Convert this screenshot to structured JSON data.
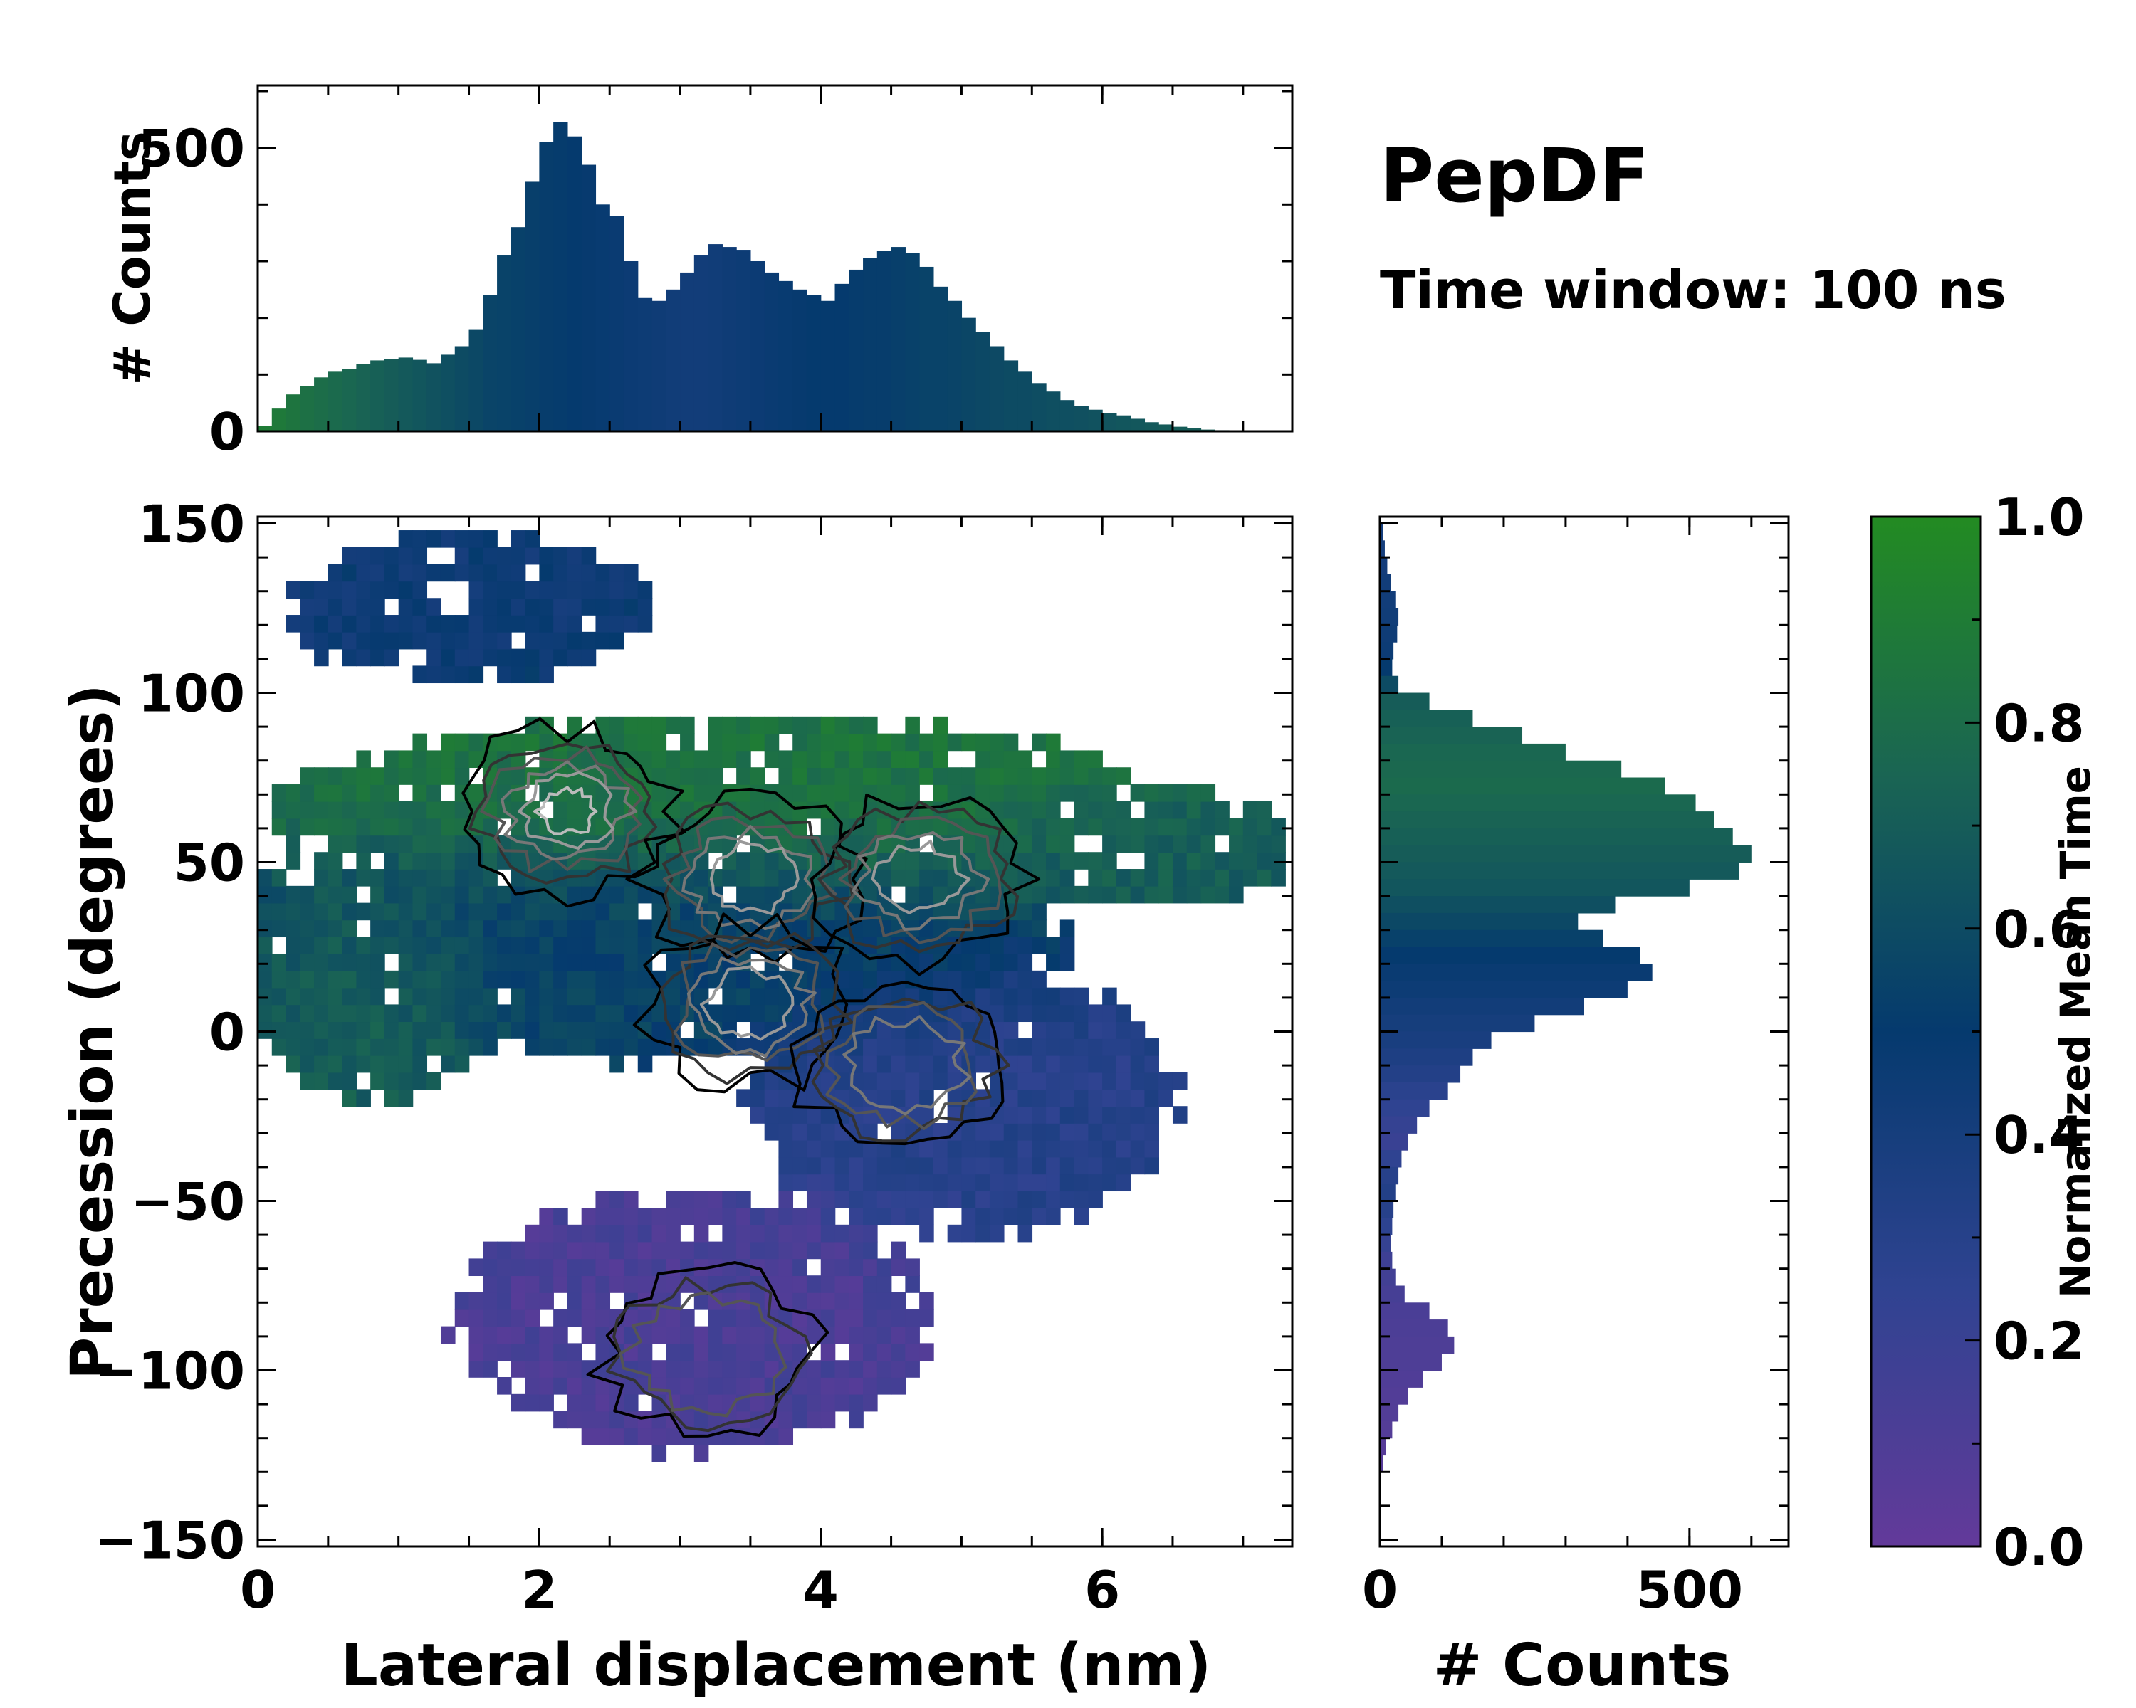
{
  "annotations": {
    "title": "PepDF",
    "subtitle": "Time window: 100 ns"
  },
  "colormap": {
    "stops": [
      {
        "value": 0.0,
        "color": "#633a9a"
      },
      {
        "value": 0.25,
        "color": "#2f4391"
      },
      {
        "value": 0.5,
        "color": "#053a6e"
      },
      {
        "value": 0.75,
        "color": "#1a6553"
      },
      {
        "value": 1.0,
        "color": "#238b22"
      }
    ],
    "contour_colors": [
      "#000000",
      "#333333",
      "#555555",
      "#777777",
      "#999999",
      "#bbbbbb"
    ]
  },
  "chart_data": [
    {
      "id": "top_histogram",
      "type": "bar",
      "title": "",
      "xlabel": "",
      "ylabel": "# Counts",
      "xlim": [
        0,
        7.35
      ],
      "ylim": [
        0,
        610
      ],
      "yticks": [
        0,
        500
      ],
      "ytick_labels": [
        "0",
        "500"
      ],
      "x": [
        0.05,
        0.15,
        0.25,
        0.35,
        0.45,
        0.55,
        0.65,
        0.75,
        0.85,
        0.95,
        1.05,
        1.15,
        1.25,
        1.35,
        1.45,
        1.55,
        1.65,
        1.75,
        1.85,
        1.95,
        2.05,
        2.15,
        2.25,
        2.35,
        2.45,
        2.55,
        2.65,
        2.75,
        2.85,
        2.95,
        3.05,
        3.15,
        3.25,
        3.35,
        3.45,
        3.55,
        3.65,
        3.75,
        3.85,
        3.95,
        4.05,
        4.15,
        4.25,
        4.35,
        4.45,
        4.55,
        4.65,
        4.75,
        4.85,
        4.95,
        5.05,
        5.15,
        5.25,
        5.35,
        5.45,
        5.55,
        5.65,
        5.75,
        5.85,
        5.95,
        6.05,
        6.15,
        6.25,
        6.35,
        6.45,
        6.55,
        6.65,
        6.75,
        6.85,
        6.95,
        7.05,
        7.15
      ],
      "values": [
        10,
        40,
        65,
        80,
        95,
        105,
        110,
        118,
        125,
        128,
        130,
        126,
        120,
        135,
        150,
        180,
        240,
        310,
        360,
        440,
        510,
        545,
        520,
        470,
        400,
        380,
        300,
        235,
        230,
        250,
        280,
        310,
        330,
        325,
        320,
        300,
        280,
        265,
        250,
        240,
        230,
        260,
        285,
        305,
        318,
        325,
        315,
        290,
        255,
        230,
        200,
        175,
        150,
        125,
        105,
        85,
        70,
        55,
        45,
        38,
        32,
        28,
        22,
        16,
        12,
        8,
        5,
        3,
        2,
        1,
        1,
        0
      ],
      "mean_time": [
        0.9,
        0.88,
        0.85,
        0.82,
        0.8,
        0.78,
        0.76,
        0.74,
        0.72,
        0.7,
        0.68,
        0.66,
        0.64,
        0.62,
        0.6,
        0.58,
        0.56,
        0.55,
        0.54,
        0.53,
        0.52,
        0.51,
        0.5,
        0.49,
        0.48,
        0.47,
        0.46,
        0.45,
        0.44,
        0.43,
        0.42,
        0.42,
        0.43,
        0.44,
        0.45,
        0.46,
        0.47,
        0.48,
        0.49,
        0.5,
        0.5,
        0.5,
        0.51,
        0.52,
        0.52,
        0.53,
        0.54,
        0.55,
        0.55,
        0.56,
        0.57,
        0.58,
        0.59,
        0.6,
        0.6,
        0.61,
        0.62,
        0.62,
        0.63,
        0.64,
        0.65,
        0.66,
        0.67,
        0.68,
        0.69,
        0.7,
        0.7,
        0.71,
        0.71,
        0.72,
        0.72,
        0.72
      ]
    },
    {
      "id": "main_heatmap",
      "type": "heatmap",
      "title": "",
      "xlabel": "Lateral displacement (nm)",
      "ylabel": "Precession (degrees)",
      "xlim": [
        0,
        7.35
      ],
      "ylim": [
        -152,
        152
      ],
      "xticks": [
        0,
        2,
        4,
        6
      ],
      "xtick_labels": [
        "0",
        "2",
        "4",
        "6"
      ],
      "yticks": [
        150,
        100,
        50,
        0,
        -50,
        -100,
        -150
      ],
      "ytick_labels": [
        "150",
        "100",
        "50",
        "0",
        "−50",
        "−100",
        "−150"
      ],
      "colorbar_label": "Normalized Mean Time",
      "clusters": [
        {
          "name": "upper-left",
          "x_center": 1.5,
          "x_radius": 1.3,
          "y_center": 125,
          "y_radius": 22,
          "mean_time": 0.45
        },
        {
          "name": "upper-band",
          "x_center": 3.3,
          "x_radius": 3.2,
          "y_center": 65,
          "y_radius": 28,
          "mean_time": 0.85
        },
        {
          "name": "central",
          "x_center": 2.8,
          "x_radius": 2.9,
          "y_center": 30,
          "y_radius": 38,
          "mean_time": 0.55
        },
        {
          "name": "left-low",
          "x_center": 0.8,
          "x_radius": 0.9,
          "y_center": 15,
          "y_radius": 35,
          "mean_time": 0.72
        },
        {
          "name": "right-lower",
          "x_center": 5.0,
          "x_radius": 1.5,
          "y_center": -20,
          "y_radius": 40,
          "mean_time": 0.3
        },
        {
          "name": "right-tail",
          "x_center": 6.2,
          "x_radius": 1.2,
          "y_center": 55,
          "y_radius": 18,
          "mean_time": 0.7
        },
        {
          "name": "bottom-lobe",
          "x_center": 3.1,
          "x_radius": 1.7,
          "y_center": -85,
          "y_radius": 38,
          "mean_time": 0.12
        }
      ],
      "density_peaks": [
        {
          "x": 2.2,
          "y": 65,
          "level": 6
        },
        {
          "x": 3.5,
          "y": 45,
          "level": 5
        },
        {
          "x": 4.7,
          "y": 45,
          "level": 5
        },
        {
          "x": 3.5,
          "y": 8,
          "level": 5
        },
        {
          "x": 4.6,
          "y": -10,
          "level": 4
        },
        {
          "x": 3.2,
          "y": -95,
          "level": 3
        }
      ]
    },
    {
      "id": "right_histogram",
      "type": "bar",
      "orientation": "horizontal",
      "title": "",
      "xlabel": "# Counts",
      "ylabel": "",
      "xlim": [
        0,
        660
      ],
      "ylim": [
        -152,
        152
      ],
      "xticks": [
        0,
        500
      ],
      "xtick_labels": [
        "0",
        "500"
      ],
      "y": [
        147.5,
        142.5,
        137.5,
        132.5,
        127.5,
        122.5,
        117.5,
        112.5,
        107.5,
        102.5,
        97.5,
        92.5,
        87.5,
        82.5,
        77.5,
        72.5,
        67.5,
        62.5,
        57.5,
        52.5,
        47.5,
        42.5,
        37.5,
        32.5,
        27.5,
        22.5,
        17.5,
        12.5,
        7.5,
        2.5,
        -2.5,
        -7.5,
        -12.5,
        -17.5,
        -22.5,
        -27.5,
        -32.5,
        -37.5,
        -42.5,
        -47.5,
        -52.5,
        -57.5,
        -62.5,
        -67.5,
        -72.5,
        -77.5,
        -82.5,
        -87.5,
        -92.5,
        -97.5,
        -102.5,
        -107.5,
        -112.5,
        -117.5,
        -122.5,
        -127.5
      ],
      "values": [
        5,
        8,
        12,
        18,
        25,
        30,
        28,
        22,
        20,
        30,
        80,
        150,
        230,
        300,
        390,
        460,
        510,
        540,
        570,
        600,
        580,
        500,
        380,
        320,
        360,
        420,
        440,
        400,
        330,
        250,
        180,
        150,
        130,
        110,
        80,
        60,
        45,
        35,
        30,
        25,
        22,
        20,
        18,
        20,
        25,
        40,
        80,
        110,
        120,
        100,
        70,
        45,
        30,
        20,
        10,
        5
      ],
      "mean_time": [
        0.4,
        0.4,
        0.41,
        0.42,
        0.42,
        0.43,
        0.44,
        0.45,
        0.5,
        0.6,
        0.7,
        0.72,
        0.74,
        0.76,
        0.77,
        0.78,
        0.76,
        0.74,
        0.72,
        0.7,
        0.68,
        0.66,
        0.62,
        0.58,
        0.54,
        0.5,
        0.47,
        0.45,
        0.42,
        0.4,
        0.38,
        0.35,
        0.32,
        0.28,
        0.25,
        0.22,
        0.2,
        0.25,
        0.3,
        0.32,
        0.3,
        0.26,
        0.22,
        0.18,
        0.16,
        0.14,
        0.12,
        0.11,
        0.1,
        0.1,
        0.09,
        0.08,
        0.08,
        0.07,
        0.06,
        0.06
      ]
    },
    {
      "id": "colorbar",
      "type": "colorbar",
      "label": "Normalized Mean Time",
      "ylim": [
        0,
        1
      ],
      "ticks": [
        0.0,
        0.2,
        0.4,
        0.6,
        0.8,
        1.0
      ],
      "tick_labels": [
        "0.0",
        "0.2",
        "0.4",
        "0.6",
        "0.8",
        "1.0"
      ]
    }
  ]
}
